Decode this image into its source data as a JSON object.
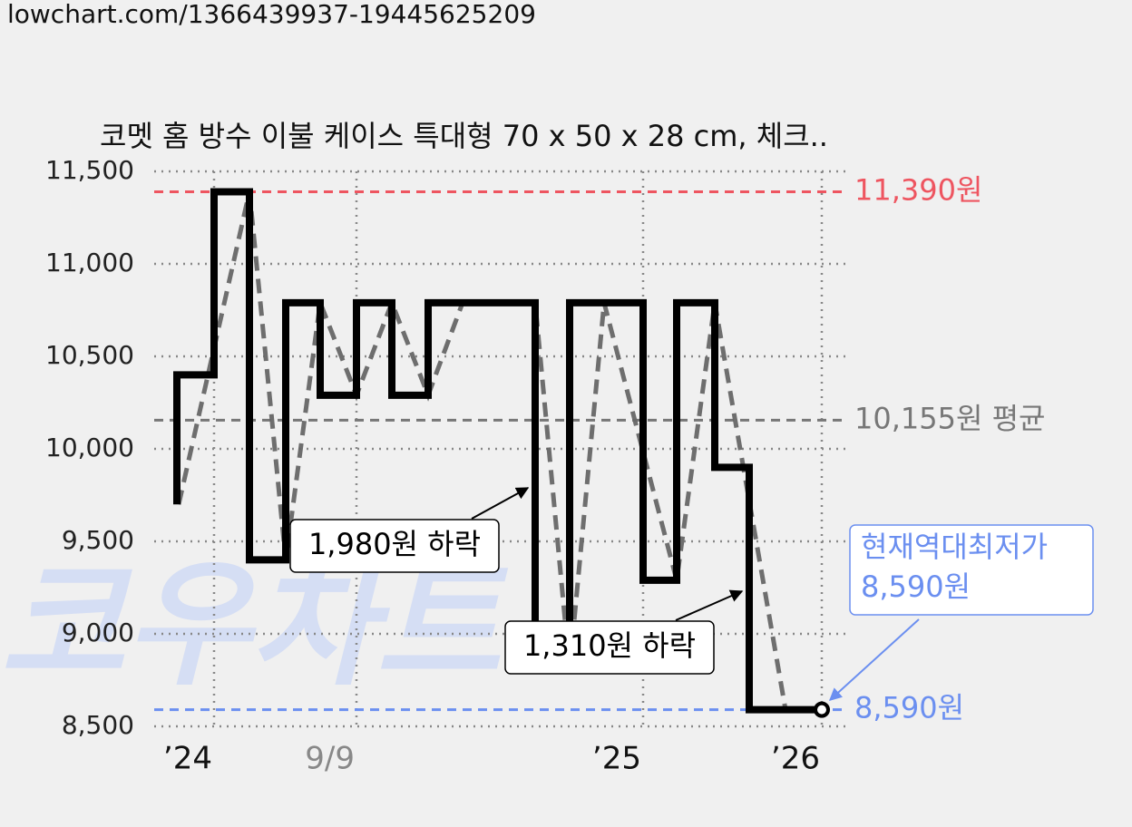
{
  "url": "lowchart.com/1366439937-19445625209",
  "chart_data": {
    "type": "line",
    "title": "코멧 홈 방수 이불 케이스 특대형 70 x 50 x 28 cm, 체크..",
    "watermark": "코우차트",
    "xlim": [
      0,
      765
    ],
    "xticks": [
      {
        "value": 66,
        "label": "’24"
      },
      {
        "value": 223,
        "label": "9/9"
      },
      {
        "value": 539,
        "label": "’25"
      },
      {
        "value": 736,
        "label": "’26"
      }
    ],
    "ylim": [
      8500,
      11500
    ],
    "yticks": [
      {
        "value": 8500,
        "label": "8,500"
      },
      {
        "value": 9000,
        "label": "9,000"
      },
      {
        "value": 9500,
        "label": "9,500"
      },
      {
        "value": 10000,
        "label": "10,000"
      },
      {
        "value": 10500,
        "label": "10,500"
      },
      {
        "value": 11000,
        "label": "11,000"
      },
      {
        "value": 11500,
        "label": "11,500"
      }
    ],
    "grid": true,
    "series": [
      {
        "color": "#000000",
        "style": "solid",
        "x": [
          25,
          25,
          66,
          66,
          105,
          105,
          145,
          145,
          183,
          183,
          223,
          223,
          262,
          262,
          302,
          302,
          420,
          420,
          458,
          458,
          539,
          539,
          576,
          576,
          618,
          618,
          656,
          656,
          736
        ],
        "values": [
          9700,
          10400,
          10400,
          11390,
          11390,
          9400,
          9400,
          10790,
          10790,
          10290,
          10290,
          10790,
          10790,
          10290,
          10290,
          10790,
          10790,
          8810,
          8810,
          10790,
          10790,
          9290,
          9290,
          10790,
          10790,
          9900,
          9900,
          8590,
          8590
        ]
      },
      {
        "color": "#666666",
        "style": "dashed",
        "x": [
          27,
          105,
          145,
          183,
          223,
          262,
          302,
          340,
          420,
          458,
          496,
          576,
          618,
          696,
          736
        ],
        "values": [
          9700,
          11390,
          9400,
          10790,
          10290,
          10790,
          10290,
          10790,
          10790,
          8810,
          10790,
          9290,
          10790,
          8590,
          8590
        ]
      }
    ],
    "reference_lines": [
      {
        "value": 11390,
        "label": "11,390원",
        "color": "#ee5560"
      },
      {
        "value": 10155,
        "label": "10,155원 평균",
        "color": "#777777"
      },
      {
        "value": 8590,
        "label": "8,590원",
        "color": "#6b8ff0"
      }
    ],
    "annotations": [
      {
        "text": "1,980원 하락"
      },
      {
        "text": "1,310원 하락"
      },
      {
        "text": [
          "현재역대최저가",
          "8,590원"
        ],
        "color": "#6b8ff0"
      }
    ]
  }
}
